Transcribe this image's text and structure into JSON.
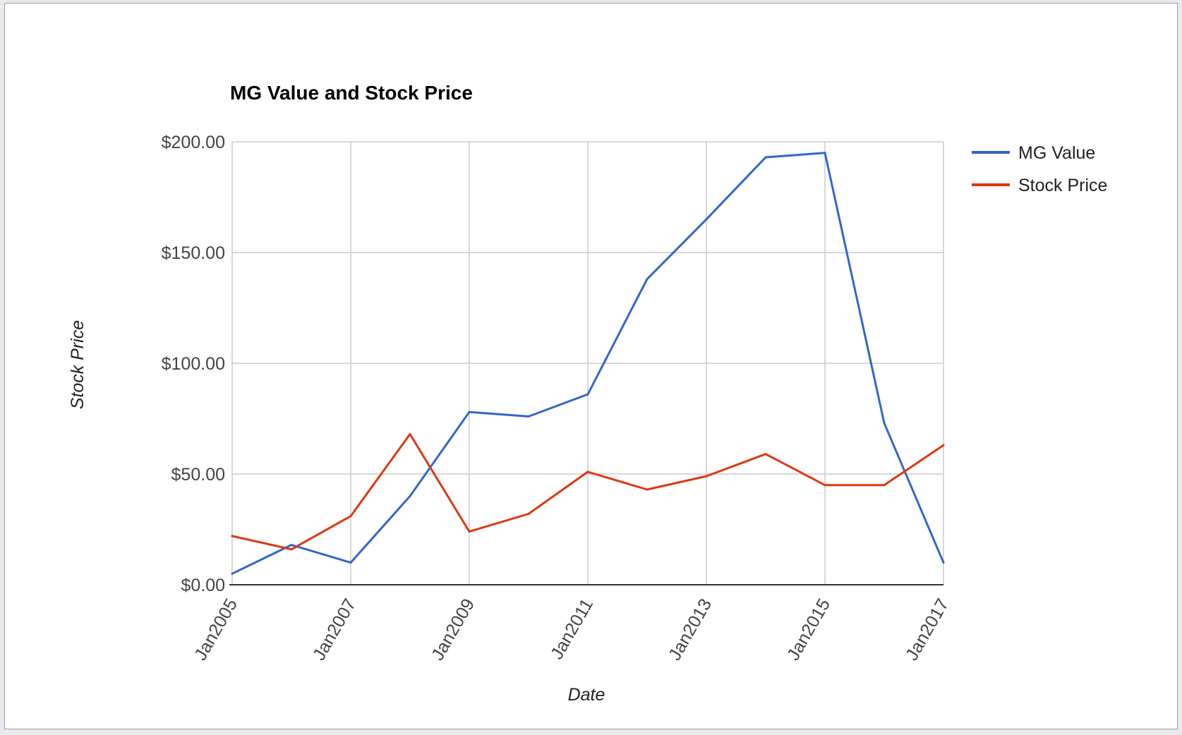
{
  "chart_data": {
    "type": "line",
    "title": "MG Value and Stock Price",
    "xlabel": "Date",
    "ylabel": "Stock Price",
    "ylim": [
      0,
      200
    ],
    "yticks": [
      "$0.00",
      "$50.00",
      "$100.00",
      "$150.00",
      "$200.00"
    ],
    "ytick_values": [
      0,
      50,
      100,
      150,
      200
    ],
    "xticks": [
      "Jan2005",
      "Jan2007",
      "Jan2009",
      "Jan2011",
      "Jan2013",
      "Jan2015",
      "Jan2017"
    ],
    "xtick_values": [
      2005,
      2007,
      2009,
      2011,
      2013,
      2015,
      2017
    ],
    "xlim": [
      2005,
      2017
    ],
    "grid": true,
    "legend_position": "right",
    "series": [
      {
        "name": "MG Value",
        "color": "#3366cc",
        "x": [
          2005,
          2006,
          2007,
          2008,
          2009,
          2010,
          2011,
          2012,
          2013,
          2014,
          2015,
          2016,
          2017
        ],
        "values": [
          5,
          18,
          10,
          40,
          78,
          76,
          86,
          138,
          165,
          193,
          195,
          73,
          10
        ]
      },
      {
        "name": "Stock Price",
        "color": "#dc3912",
        "x": [
          2005,
          2006,
          2007,
          2008,
          2009,
          2010,
          2011,
          2012,
          2013,
          2014,
          2015,
          2016,
          2017
        ],
        "values": [
          22,
          16,
          31,
          68,
          24,
          32,
          51,
          43,
          49,
          59,
          45,
          45,
          63
        ]
      }
    ]
  }
}
